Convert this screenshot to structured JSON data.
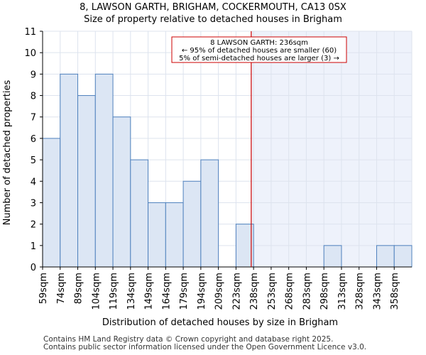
{
  "chart_data": {
    "type": "bar",
    "title_line1": "8, LAWSON GARTH, BRIGHAM, COCKERMOUTH, CA13 0SX",
    "title_line2": "Size of property relative to detached houses in Brigham",
    "xlabel": "Distribution of detached houses by size in Brigham",
    "ylabel": "Number of detached properties",
    "categories": [
      "59sqm",
      "74sqm",
      "89sqm",
      "104sqm",
      "119sqm",
      "134sqm",
      "149sqm",
      "164sqm",
      "179sqm",
      "194sqm",
      "209sqm",
      "223sqm",
      "238sqm",
      "253sqm",
      "268sqm",
      "283sqm",
      "298sqm",
      "313sqm",
      "328sqm",
      "343sqm",
      "358sqm"
    ],
    "bin_edges": [
      59,
      74,
      89,
      104,
      119,
      134,
      149,
      164,
      179,
      194,
      209,
      223,
      238,
      253,
      268,
      283,
      298,
      313,
      328,
      343,
      358,
      373
    ],
    "values": [
      6,
      9,
      8,
      9,
      7,
      5,
      3,
      3,
      4,
      5,
      0,
      2,
      0,
      0,
      0,
      0,
      1,
      0,
      0,
      1,
      1
    ],
    "ylim": [
      0,
      11
    ],
    "yticks": [
      0,
      1,
      2,
      3,
      4,
      5,
      6,
      7,
      8,
      9,
      10,
      11
    ],
    "grid": true,
    "marker_value": 236,
    "annotation": {
      "line1": "8 LAWSON GARTH: 236sqm",
      "line2": "← 95% of detached houses are smaller (60)",
      "line3": "5% of semi-detached houses are larger (3) →"
    },
    "colors": {
      "bar_fill": "#dce6f4",
      "bar_stroke": "#4f81bd",
      "marker": "#cc0000",
      "highlight_bg": "#eef2fb",
      "grid": "#dde3ee"
    }
  },
  "footer": {
    "line1": "Contains HM Land Registry data © Crown copyright and database right 2025.",
    "line2": "Contains public sector information licensed under the Open Government Licence v3.0."
  }
}
